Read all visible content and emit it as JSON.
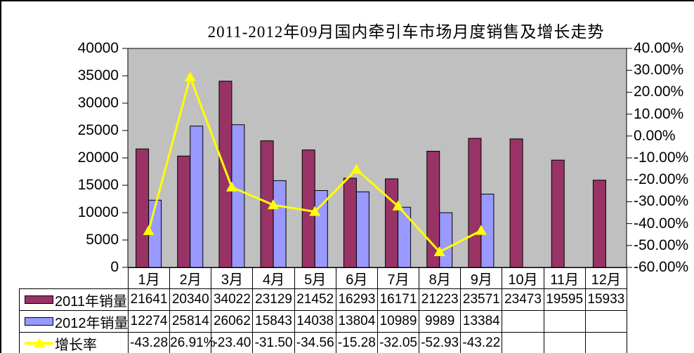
{
  "title": "2011-2012年09月国内牵引车市场月度销售及增长走势",
  "colors": {
    "bar_2011": "#993366",
    "bar_2012": "#9999FF",
    "growth_line": "#FFFF00",
    "plot_background": "#C0C0C0",
    "axis": "#000000"
  },
  "chart_data": {
    "type": "bar",
    "subtype": "grouped bars with overlaid line (secondary axis)",
    "title": "2011-2012年09月国内牵引车市场月度销售及增长走势",
    "categories": [
      "1月",
      "2月",
      "3月",
      "4月",
      "5月",
      "6月",
      "7月",
      "8月",
      "9月",
      "10月",
      "11月",
      "12月"
    ],
    "series": [
      {
        "name": "2011年销量",
        "type": "bar",
        "color": "#993366",
        "values": [
          21641,
          20340,
          34022,
          23129,
          21452,
          16293,
          16171,
          21223,
          23571,
          23473,
          19595,
          15933
        ]
      },
      {
        "name": "2012年销量",
        "type": "bar",
        "color": "#9999FF",
        "values": [
          12274,
          25814,
          26062,
          15843,
          14038,
          13804,
          10989,
          9989,
          13384,
          null,
          null,
          null
        ]
      },
      {
        "name": "增长率",
        "type": "line",
        "axis": "right",
        "color": "#FFFF00",
        "marker": "triangle",
        "values": [
          -43.28,
          26.91,
          -23.4,
          -31.5,
          -34.56,
          -15.28,
          -32.05,
          -52.93,
          -43.22,
          null,
          null,
          null
        ]
      }
    ],
    "left_axis": {
      "min": 0,
      "max": 40000,
      "step": 5000,
      "tick_labels": [
        "40000",
        "35000",
        "30000",
        "25000",
        "20000",
        "15000",
        "10000",
        "5000",
        "0"
      ]
    },
    "right_axis": {
      "min": -60,
      "max": 40,
      "step": 10,
      "tick_labels": [
        "40.00%",
        "30.00%",
        "20.00%",
        "10.00%",
        "0.00%",
        "-10.00%",
        "-20.00%",
        "-30.00%",
        "-40.00%",
        "-50.00%",
        "-60.00%"
      ]
    },
    "grid": false,
    "legend_position": "table-left",
    "plot_background": "#C0C0C0"
  },
  "table": {
    "months": [
      "1月",
      "2月",
      "3月",
      "4月",
      "5月",
      "6月",
      "7月",
      "8月",
      "9月",
      "10月",
      "11月",
      "12月"
    ],
    "rows": [
      {
        "legend": "2011年销量",
        "swatch": "bar",
        "color": "#993366",
        "cells": [
          "21641",
          "20340",
          "34022",
          "23129",
          "21452",
          "16293",
          "16171",
          "21223",
          "23571",
          "23473",
          "19595",
          "15933"
        ]
      },
      {
        "legend": "2012年销量",
        "swatch": "bar",
        "color": "#9999FF",
        "cells": [
          "12274",
          "25814",
          "26062",
          "15843",
          "14038",
          "13804",
          "10989",
          "9989",
          "13384",
          "",
          "",
          ""
        ]
      },
      {
        "legend": "增长率",
        "swatch": "line",
        "color": "#FFFF00",
        "cells": [
          "-43.28",
          "26.91%",
          "-23.40",
          "-31.50",
          "-34.56",
          "-15.28",
          "-32.05",
          "-52.93",
          "-43.22",
          "",
          "",
          ""
        ]
      }
    ]
  }
}
